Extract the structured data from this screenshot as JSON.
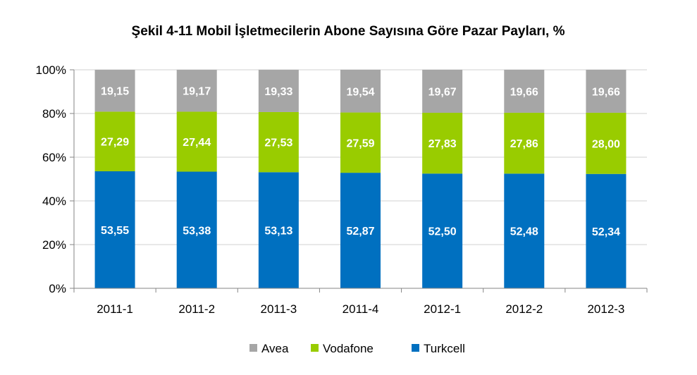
{
  "chart_data": {
    "type": "bar",
    "stacked": true,
    "title": "Şekil 4-11 Mobil İşletmecilerin Abone Sayısına Göre Pazar Payları, %",
    "xlabel": "",
    "ylabel": "",
    "ylim": [
      0,
      100
    ],
    "y_ticks": [
      "0%",
      "20%",
      "40%",
      "60%",
      "80%",
      "100%"
    ],
    "grid": true,
    "legend_position": "bottom",
    "categories": [
      "2011-1",
      "2011-2",
      "2011-3",
      "2011-4",
      "2012-1",
      "2012-2",
      "2012-3"
    ],
    "series": [
      {
        "name": "Turkcell",
        "color": "#0070C0",
        "values": [
          53.55,
          53.38,
          53.13,
          52.87,
          52.5,
          52.48,
          52.34
        ],
        "labels": [
          "53,55",
          "53,38",
          "53,13",
          "52,87",
          "52,50",
          "52,48",
          "52,34"
        ]
      },
      {
        "name": "Vodafone",
        "color": "#99CC00",
        "values": [
          27.29,
          27.44,
          27.53,
          27.59,
          27.83,
          27.86,
          28.0
        ],
        "labels": [
          "27,29",
          "27,44",
          "27,53",
          "27,59",
          "27,83",
          "27,86",
          "28,00"
        ]
      },
      {
        "name": "Avea",
        "color": "#A6A6A6",
        "values": [
          19.15,
          19.17,
          19.33,
          19.54,
          19.67,
          19.66,
          19.66
        ],
        "labels": [
          "19,15",
          "19,17",
          "19,33",
          "19,54",
          "19,67",
          "19,66",
          "19,66"
        ]
      }
    ],
    "legend_order": [
      "Avea",
      "Vodafone",
      "Turkcell"
    ]
  }
}
